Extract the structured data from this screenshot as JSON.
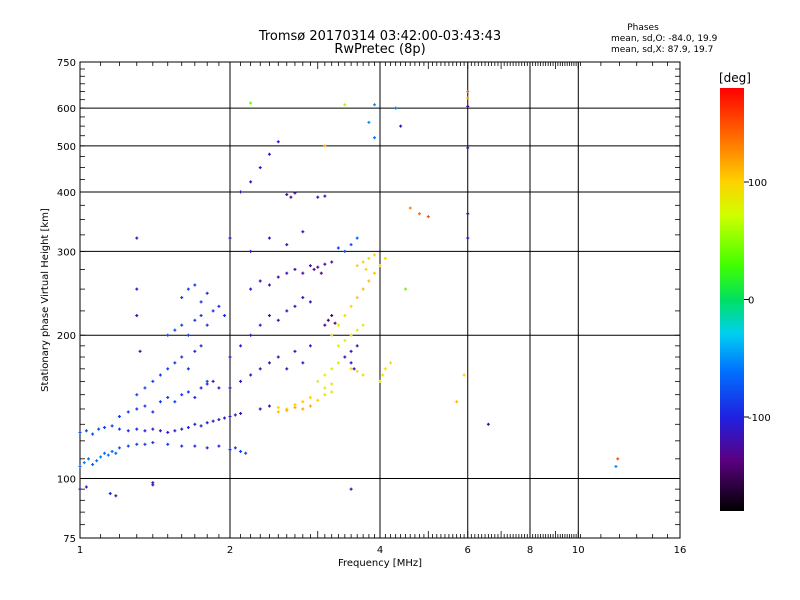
{
  "header": {
    "title_line1": "Tromsø 20170314 03:42:00-03:43:43",
    "title_line2": "RwPretec (8p)",
    "stats_title": "Phases",
    "stats_o": "mean, sd,O: -84.0, 19.9",
    "stats_x": "mean, sd,X:  87.9, 19.7"
  },
  "chart_data": {
    "type": "scatter",
    "xlabel": "Frequency [MHz]",
    "ylabel": "Stationary phase Virtual Height [km]",
    "xscale": "log",
    "yscale": "log",
    "xlim": [
      1,
      16
    ],
    "ylim": [
      75,
      750
    ],
    "xticks": [
      1,
      2,
      4,
      6,
      8,
      10,
      16
    ],
    "yticks": [
      75,
      100,
      200,
      300,
      400,
      500,
      600,
      750
    ],
    "colorbar": {
      "label": "[deg]",
      "range": [
        -180,
        180
      ],
      "ticks": [
        100,
        0,
        -100
      ]
    },
    "points": [
      [
        1.0,
        95,
        -120
      ],
      [
        1.03,
        96,
        -110
      ],
      [
        1.15,
        93,
        -100
      ],
      [
        1.18,
        92,
        -110
      ],
      [
        1.4,
        97,
        -125
      ],
      [
        1.0,
        106,
        -60
      ],
      [
        1.02,
        108,
        -55
      ],
      [
        1.04,
        110,
        -60
      ],
      [
        1.06,
        107,
        -65
      ],
      [
        1.08,
        109,
        -60
      ],
      [
        1.1,
        111,
        -58
      ],
      [
        1.12,
        113,
        -62
      ],
      [
        1.14,
        112,
        -60
      ],
      [
        1.16,
        114,
        -66
      ],
      [
        1.18,
        113,
        -70
      ],
      [
        1.2,
        116,
        -72
      ],
      [
        1.25,
        117,
        -80
      ],
      [
        1.3,
        118,
        -85
      ],
      [
        1.35,
        118,
        -88
      ],
      [
        1.4,
        119,
        -90
      ],
      [
        1.5,
        118,
        -92
      ],
      [
        1.6,
        117,
        -95
      ],
      [
        1.7,
        117,
        -98
      ],
      [
        1.8,
        116,
        -100
      ],
      [
        1.9,
        117,
        -100
      ],
      [
        2.0,
        115,
        -95
      ],
      [
        2.05,
        116,
        -90
      ],
      [
        2.1,
        114,
        -85
      ],
      [
        2.15,
        113,
        -80
      ],
      [
        1.0,
        125,
        -75
      ],
      [
        1.03,
        126,
        -80
      ],
      [
        1.06,
        124,
        -78
      ],
      [
        1.09,
        127,
        -82
      ],
      [
        1.12,
        128,
        -85
      ],
      [
        1.16,
        129,
        -88
      ],
      [
        1.2,
        127,
        -90
      ],
      [
        1.25,
        126,
        -95
      ],
      [
        1.3,
        127,
        -100
      ],
      [
        1.35,
        126,
        -105
      ],
      [
        1.4,
        127,
        -108
      ],
      [
        1.45,
        126,
        -110
      ],
      [
        1.5,
        125,
        -110
      ],
      [
        1.55,
        126,
        -108
      ],
      [
        1.6,
        127,
        -105
      ],
      [
        1.65,
        128,
        -100
      ],
      [
        1.7,
        130,
        -100
      ],
      [
        1.75,
        129,
        -102
      ],
      [
        1.8,
        131,
        -104
      ],
      [
        1.85,
        132,
        -106
      ],
      [
        1.9,
        133,
        -108
      ],
      [
        1.95,
        134,
        -110
      ],
      [
        2.0,
        135,
        -110
      ],
      [
        2.05,
        136,
        -112
      ],
      [
        2.1,
        137,
        -112
      ],
      [
        1.2,
        135,
        -85
      ],
      [
        1.25,
        138,
        -88
      ],
      [
        1.3,
        140,
        -90
      ],
      [
        1.35,
        142,
        -92
      ],
      [
        1.4,
        138,
        -95
      ],
      [
        1.45,
        145,
        -90
      ],
      [
        1.5,
        148,
        -88
      ],
      [
        1.55,
        145,
        -85
      ],
      [
        1.6,
        150,
        -90
      ],
      [
        1.65,
        152,
        -92
      ],
      [
        1.7,
        148,
        -95
      ],
      [
        1.75,
        155,
        -98
      ],
      [
        1.8,
        158,
        -100
      ],
      [
        1.85,
        160,
        -102
      ],
      [
        1.9,
        155,
        -104
      ],
      [
        1.3,
        150,
        -80
      ],
      [
        1.35,
        155,
        -82
      ],
      [
        1.4,
        160,
        -84
      ],
      [
        1.45,
        165,
        -86
      ],
      [
        1.5,
        170,
        -88
      ],
      [
        1.55,
        175,
        -90
      ],
      [
        1.6,
        180,
        -92
      ],
      [
        1.65,
        170,
        -94
      ],
      [
        1.7,
        185,
        -96
      ],
      [
        1.75,
        190,
        -98
      ],
      [
        1.5,
        200,
        -80
      ],
      [
        1.55,
        205,
        -82
      ],
      [
        1.6,
        210,
        -84
      ],
      [
        1.65,
        200,
        -86
      ],
      [
        1.7,
        215,
        -88
      ],
      [
        1.75,
        220,
        -90
      ],
      [
        1.8,
        210,
        -92
      ],
      [
        1.85,
        225,
        -94
      ],
      [
        1.9,
        230,
        -96
      ],
      [
        1.95,
        220,
        -98
      ],
      [
        1.6,
        240,
        -85
      ],
      [
        1.65,
        250,
        -88
      ],
      [
        1.7,
        255,
        -90
      ],
      [
        1.75,
        235,
        -92
      ],
      [
        1.8,
        245,
        -95
      ],
      [
        2.0,
        155,
        -110
      ],
      [
        2.1,
        160,
        -112
      ],
      [
        2.2,
        165,
        -114
      ],
      [
        2.3,
        170,
        -116
      ],
      [
        2.4,
        175,
        -118
      ],
      [
        2.5,
        180,
        -118
      ],
      [
        2.6,
        170,
        -115
      ],
      [
        2.7,
        185,
        -112
      ],
      [
        2.8,
        175,
        -110
      ],
      [
        2.9,
        190,
        -108
      ],
      [
        2.0,
        180,
        -105
      ],
      [
        2.1,
        190,
        -108
      ],
      [
        2.2,
        200,
        -110
      ],
      [
        2.3,
        210,
        -112
      ],
      [
        2.4,
        220,
        -114
      ],
      [
        2.5,
        215,
        -116
      ],
      [
        2.6,
        225,
        -118
      ],
      [
        2.7,
        230,
        -118
      ],
      [
        2.8,
        240,
        -120
      ],
      [
        2.9,
        235,
        -120
      ],
      [
        2.2,
        250,
        -115
      ],
      [
        2.3,
        260,
        -118
      ],
      [
        2.4,
        255,
        -120
      ],
      [
        2.5,
        265,
        -122
      ],
      [
        2.6,
        270,
        -124
      ],
      [
        2.7,
        275,
        -125
      ],
      [
        2.8,
        270,
        -126
      ],
      [
        2.9,
        280,
        -128
      ],
      [
        3.0,
        278,
        -130
      ],
      [
        3.1,
        282,
        -128
      ],
      [
        3.2,
        285,
        -125
      ],
      [
        2.95,
        275,
        -130
      ],
      [
        3.05,
        270,
        -132
      ],
      [
        2.2,
        300,
        -110
      ],
      [
        2.4,
        320,
        -112
      ],
      [
        2.6,
        310,
        -115
      ],
      [
        2.8,
        330,
        -118
      ],
      [
        2.1,
        400,
        -120
      ],
      [
        2.2,
        420,
        -118
      ],
      [
        2.3,
        450,
        -115
      ],
      [
        2.4,
        480,
        -112
      ],
      [
        2.5,
        510,
        -110
      ],
      [
        2.6,
        395,
        -125
      ],
      [
        2.65,
        390,
        -128
      ],
      [
        2.7,
        398,
        -126
      ],
      [
        3.0,
        390,
        -120
      ],
      [
        3.1,
        392,
        -118
      ],
      [
        2.3,
        140,
        -120
      ],
      [
        2.4,
        142,
        -118
      ],
      [
        2.5,
        141,
        95
      ],
      [
        2.6,
        140,
        100
      ],
      [
        2.7,
        143,
        102
      ],
      [
        2.8,
        145,
        105
      ],
      [
        2.9,
        148,
        100
      ],
      [
        3.0,
        146,
        98
      ],
      [
        3.1,
        150,
        95
      ],
      [
        3.2,
        152,
        92
      ],
      [
        2.5,
        138,
        110
      ],
      [
        2.6,
        139,
        112
      ],
      [
        2.7,
        141,
        115
      ],
      [
        2.8,
        140,
        118
      ],
      [
        2.9,
        142,
        115
      ],
      [
        3.0,
        160,
        80
      ],
      [
        3.1,
        165,
        82
      ],
      [
        3.2,
        170,
        85
      ],
      [
        3.3,
        175,
        88
      ],
      [
        3.4,
        180,
        90
      ],
      [
        3.5,
        170,
        92
      ],
      [
        3.6,
        168,
        95
      ],
      [
        3.7,
        165,
        98
      ],
      [
        3.1,
        155,
        85
      ],
      [
        3.2,
        158,
        88
      ],
      [
        3.2,
        200,
        90
      ],
      [
        3.3,
        210,
        92
      ],
      [
        3.4,
        220,
        95
      ],
      [
        3.5,
        230,
        100
      ],
      [
        3.6,
        240,
        105
      ],
      [
        3.7,
        250,
        110
      ],
      [
        3.8,
        260,
        108
      ],
      [
        3.9,
        270,
        105
      ],
      [
        4.0,
        280,
        100
      ],
      [
        4.1,
        290,
        95
      ],
      [
        3.6,
        280,
        100
      ],
      [
        3.7,
        285,
        102
      ],
      [
        3.75,
        275,
        98
      ],
      [
        3.8,
        290,
        96
      ],
      [
        3.9,
        295,
        98
      ],
      [
        3.3,
        190,
        70
      ],
      [
        3.4,
        195,
        75
      ],
      [
        3.5,
        200,
        80
      ],
      [
        3.6,
        205,
        85
      ],
      [
        3.7,
        210,
        88
      ],
      [
        3.4,
        180,
        -110
      ],
      [
        3.5,
        185,
        -112
      ],
      [
        3.6,
        190,
        -114
      ],
      [
        3.5,
        175,
        -115
      ],
      [
        3.55,
        170,
        -118
      ],
      [
        3.1,
        210,
        -140
      ],
      [
        3.15,
        215,
        -142
      ],
      [
        3.2,
        220,
        -145
      ],
      [
        3.25,
        212,
        -140
      ],
      [
        4.0,
        160,
        85
      ],
      [
        4.05,
        165,
        88
      ],
      [
        4.1,
        170,
        90
      ],
      [
        4.2,
        175,
        92
      ],
      [
        3.4,
        300,
        -80
      ],
      [
        3.5,
        310,
        -75
      ],
      [
        3.6,
        320,
        -70
      ],
      [
        3.3,
        305,
        -85
      ],
      [
        4.6,
        370,
        130
      ],
      [
        4.8,
        360,
        140
      ],
      [
        5.0,
        355,
        150
      ],
      [
        4.5,
        250,
        40
      ],
      [
        4.4,
        550,
        -120
      ],
      [
        4.3,
        600,
        -60
      ],
      [
        3.9,
        610,
        -50
      ],
      [
        3.4,
        610,
        60
      ],
      [
        2.2,
        615,
        40
      ],
      [
        3.1,
        500,
        110
      ],
      [
        3.9,
        520,
        -60
      ],
      [
        3.8,
        560,
        -50
      ],
      [
        6.0,
        650,
        140
      ],
      [
        6.0,
        630,
        120
      ],
      [
        6.0,
        605,
        -130
      ],
      [
        6.0,
        495,
        -120
      ],
      [
        6.0,
        360,
        -125
      ],
      [
        6.0,
        320,
        -110
      ],
      [
        5.9,
        165,
        100
      ],
      [
        5.7,
        145,
        110
      ],
      [
        6.6,
        130,
        -125
      ],
      [
        12.0,
        110,
        150
      ],
      [
        11.9,
        106,
        -50
      ],
      [
        1.3,
        320,
        -120
      ],
      [
        1.3,
        250,
        -115
      ],
      [
        1.3,
        220,
        -125
      ],
      [
        1.32,
        185,
        -120
      ],
      [
        3.5,
        95,
        -120
      ],
      [
        1.4,
        98,
        -110
      ],
      [
        2.0,
        320,
        -118
      ],
      [
        1.8,
        160,
        -80
      ]
    ]
  }
}
